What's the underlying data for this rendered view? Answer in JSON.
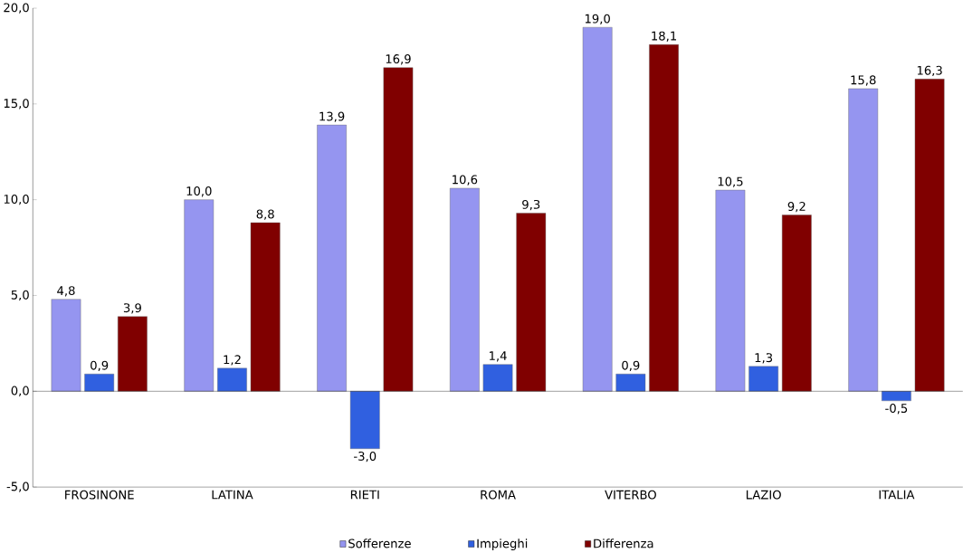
{
  "chart_data": {
    "type": "bar",
    "categories": [
      "FROSINONE",
      "LATINA",
      "RIETI",
      "ROMA",
      "VITERBO",
      "LAZIO",
      "ITALIA"
    ],
    "series": [
      {
        "name": "Sofferenze",
        "color": "#9595f0",
        "values": [
          4.8,
          10.0,
          13.9,
          10.6,
          19.0,
          10.5,
          15.8
        ],
        "value_labels": [
          "4,8",
          "10,0",
          "13,9",
          "10,6",
          "19,0",
          "10,5",
          "15,8"
        ]
      },
      {
        "name": "Impieghi",
        "color": "#3060e0",
        "values": [
          0.9,
          1.2,
          -3.0,
          1.4,
          0.9,
          1.3,
          -0.5
        ],
        "value_labels": [
          "0,9",
          "1,2",
          "-3,0",
          "1,4",
          "0,9",
          "1,3",
          "-0,5"
        ]
      },
      {
        "name": "Differenza",
        "color": "#800000",
        "values": [
          3.9,
          8.8,
          16.9,
          9.3,
          18.1,
          9.2,
          16.3
        ],
        "value_labels": [
          "3,9",
          "8,8",
          "16,9",
          "9,3",
          "18,1",
          "9,2",
          "16,3"
        ]
      }
    ],
    "ylim": [
      -5,
      20
    ],
    "yticks": [
      {
        "value": -5,
        "label": "-5,0"
      },
      {
        "value": 0,
        "label": "0,0"
      },
      {
        "value": 5,
        "label": "5,0"
      },
      {
        "value": 10,
        "label": "10,0"
      },
      {
        "value": 15,
        "label": "15,0"
      },
      {
        "value": 20,
        "label": "20,0"
      }
    ],
    "legend": "bottom"
  }
}
